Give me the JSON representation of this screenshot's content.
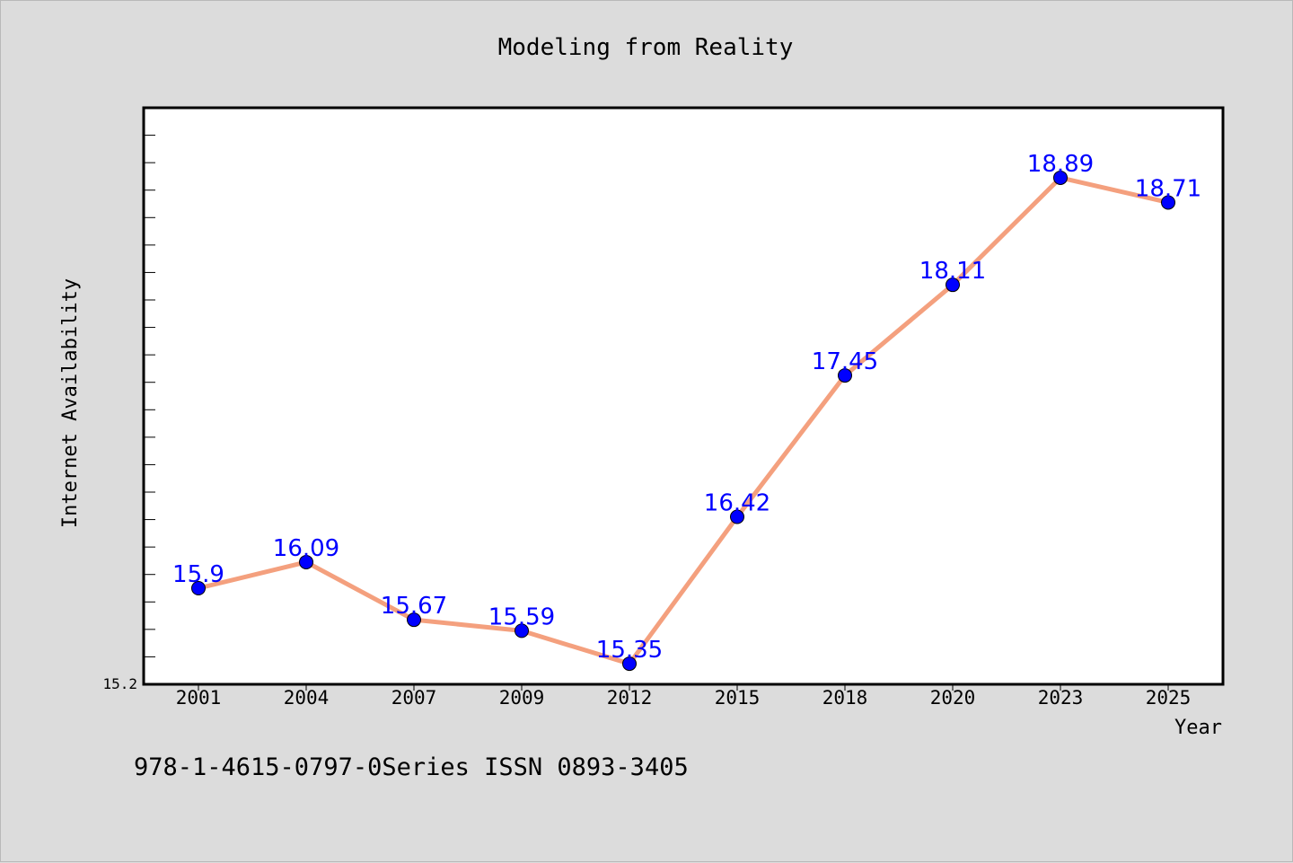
{
  "chart_data": {
    "type": "line",
    "title": "Modeling from Reality",
    "xlabel": "Year",
    "ylabel": "Internet Availability",
    "categories": [
      "2001",
      "2004",
      "2007",
      "2009",
      "2012",
      "2015",
      "2018",
      "2020",
      "2023",
      "2025"
    ],
    "series": [
      {
        "values": [
          15.9,
          16.09,
          15.67,
          15.59,
          15.35,
          16.42,
          17.45,
          18.11,
          18.89,
          18.71
        ],
        "labels": [
          "15.9",
          "16.09",
          "15.67",
          "15.59",
          "15.35",
          "16.42",
          "17.45",
          "18.11",
          "18.89",
          "18.71"
        ]
      }
    ],
    "ylim": [
      15.2,
      19.4
    ],
    "y_tick_label": "15.2",
    "grid": false,
    "colors": {
      "line": "#f4a07e",
      "marker": "#0000ff",
      "label": "#0000ff",
      "background": "#dcdcdc",
      "plot_background": "#ffffff"
    }
  },
  "footer": {
    "text": "978-1-4615-0797-0Series ISSN 0893-3405"
  }
}
